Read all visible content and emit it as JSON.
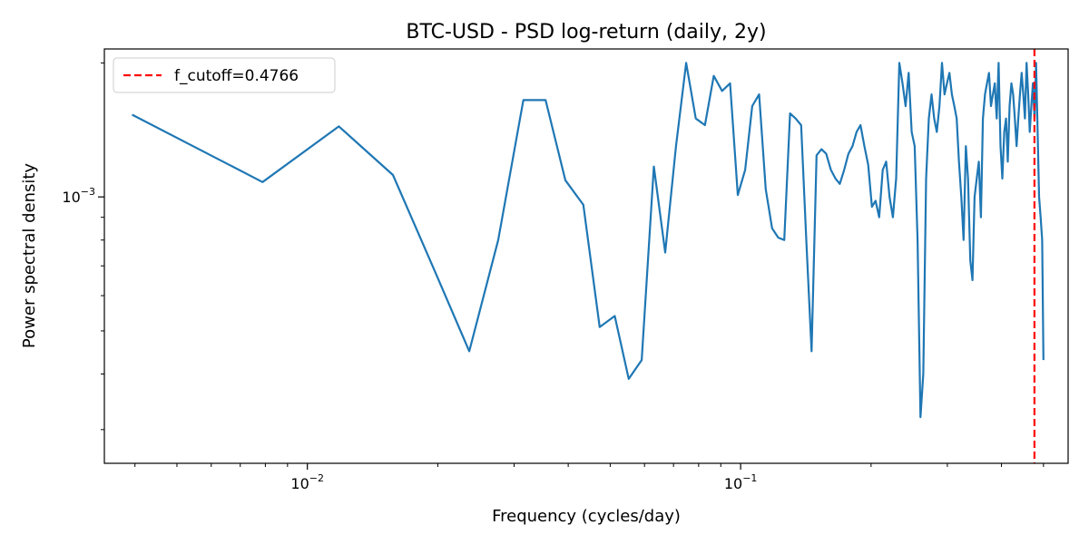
{
  "chart_data": {
    "type": "line",
    "title": "BTC-USD - PSD log-return (daily, 2y)",
    "xlabel": "Frequency (cycles/day)",
    "ylabel": "Power spectral density",
    "x_scale": "log",
    "y_scale": "log",
    "xlim": [
      0.0034,
      0.57
    ],
    "ylim": [
      0.000252,
      0.00215
    ],
    "x_major_ticks": [
      {
        "value": 0.01,
        "mantissa": "10",
        "exponent": "−2"
      },
      {
        "value": 0.1,
        "mantissa": "10",
        "exponent": "−1"
      }
    ],
    "y_major_ticks": [
      {
        "value": 0.001,
        "mantissa": "10",
        "exponent": "−3"
      }
    ],
    "grid": false,
    "legend_position": "top-left",
    "series": [
      {
        "color": "#1f77b4",
        "x": [
          0.00394,
          0.00788,
          0.01182,
          0.01576,
          0.0197,
          0.02364,
          0.02758,
          0.03152,
          0.03546,
          0.0394,
          0.04334,
          0.04728,
          0.05122,
          0.05516,
          0.0591,
          0.06304,
          0.06698,
          0.07092,
          0.07486,
          0.0788,
          0.08274,
          0.08668,
          0.09062,
          0.09456,
          0.0985,
          0.10244,
          0.10638,
          0.11032,
          0.11426,
          0.1182,
          0.12214,
          0.12608,
          0.13002,
          0.13396,
          0.1379,
          0.14184,
          0.14578,
          0.14972,
          0.15366,
          0.1576,
          0.16154,
          0.16548,
          0.16942,
          0.17336,
          0.1773,
          0.18124,
          0.18518,
          0.18912,
          0.19306,
          0.197,
          0.20094,
          0.20488,
          0.20882,
          0.21276,
          0.2167,
          0.22064,
          0.22458,
          0.22852,
          0.23246,
          0.2364,
          0.24034,
          0.24428,
          0.24822,
          0.25216,
          0.2561,
          0.26004,
          0.26398,
          0.26792,
          0.27186,
          0.2758,
          0.27974,
          0.28368,
          0.28762,
          0.29156,
          0.2955,
          0.29944,
          0.30338,
          0.30732,
          0.31126,
          0.3152,
          0.31914,
          0.32308,
          0.32702,
          0.33096,
          0.3349,
          0.33884,
          0.34278,
          0.34672,
          0.35066,
          0.3546,
          0.35854,
          0.36248,
          0.36642,
          0.37036,
          0.3743,
          0.37824,
          0.38218,
          0.38612,
          0.39006,
          0.394,
          0.39794,
          0.40188,
          0.40582,
          0.40976,
          0.4137,
          0.41764,
          0.42158,
          0.42552,
          0.42946,
          0.4334,
          0.43734,
          0.44128,
          0.44522,
          0.44916,
          0.4531,
          0.45704,
          0.46098,
          0.46492,
          0.46886,
          0.4728,
          0.47674,
          0.48068,
          0.48462,
          0.48856,
          0.4925,
          0.49644,
          0.5
        ],
        "y": [
          0.00153,
          0.00108,
          0.00144,
          0.00112,
          0.00068,
          0.00045,
          0.0008,
          0.00165,
          0.00165,
          0.00109,
          0.00096,
          0.00051,
          0.00054,
          0.00039,
          0.00043,
          0.00117,
          0.00075,
          0.0013,
          0.002,
          0.0015,
          0.00145,
          0.00187,
          0.00173,
          0.0018,
          0.00101,
          0.00115,
          0.0016,
          0.0017,
          0.00104,
          0.00085,
          0.00081,
          0.0008,
          0.00154,
          0.0015,
          0.00145,
          0.00079,
          0.00045,
          0.00124,
          0.00128,
          0.00125,
          0.00115,
          0.0011,
          0.00107,
          0.00115,
          0.00125,
          0.0013,
          0.0014,
          0.00145,
          0.0013,
          0.00118,
          0.00095,
          0.00098,
          0.0009,
          0.00115,
          0.0012,
          0.001,
          0.0009,
          0.0011,
          0.002,
          0.0018,
          0.0016,
          0.0019,
          0.0014,
          0.0013,
          0.0008,
          0.00032,
          0.0004,
          0.0011,
          0.0015,
          0.0017,
          0.0015,
          0.0014,
          0.0016,
          0.002,
          0.0017,
          0.0018,
          0.0019,
          0.0017,
          0.0016,
          0.0015,
          0.0012,
          0.001,
          0.0008,
          0.0013,
          0.0011,
          0.00072,
          0.00065,
          0.001,
          0.0011,
          0.0012,
          0.0009,
          0.0015,
          0.0017,
          0.0018,
          0.0019,
          0.0016,
          0.0017,
          0.0018,
          0.0015,
          0.002,
          0.0013,
          0.0011,
          0.0014,
          0.0015,
          0.0012,
          0.0016,
          0.0018,
          0.0017,
          0.0015,
          0.0013,
          0.0015,
          0.0017,
          0.0019,
          0.0017,
          0.0015,
          0.002,
          0.0017,
          0.0014,
          0.0016,
          0.0018,
          0.0015,
          0.002,
          0.0014,
          0.001,
          0.0009,
          0.0008,
          0.00043
        ]
      }
    ],
    "reference_lines": [
      {
        "orientation": "vertical",
        "x": 0.4766,
        "color": "#ff0000",
        "style": "dashed",
        "label": "f_cutoff=0.4766"
      }
    ]
  }
}
